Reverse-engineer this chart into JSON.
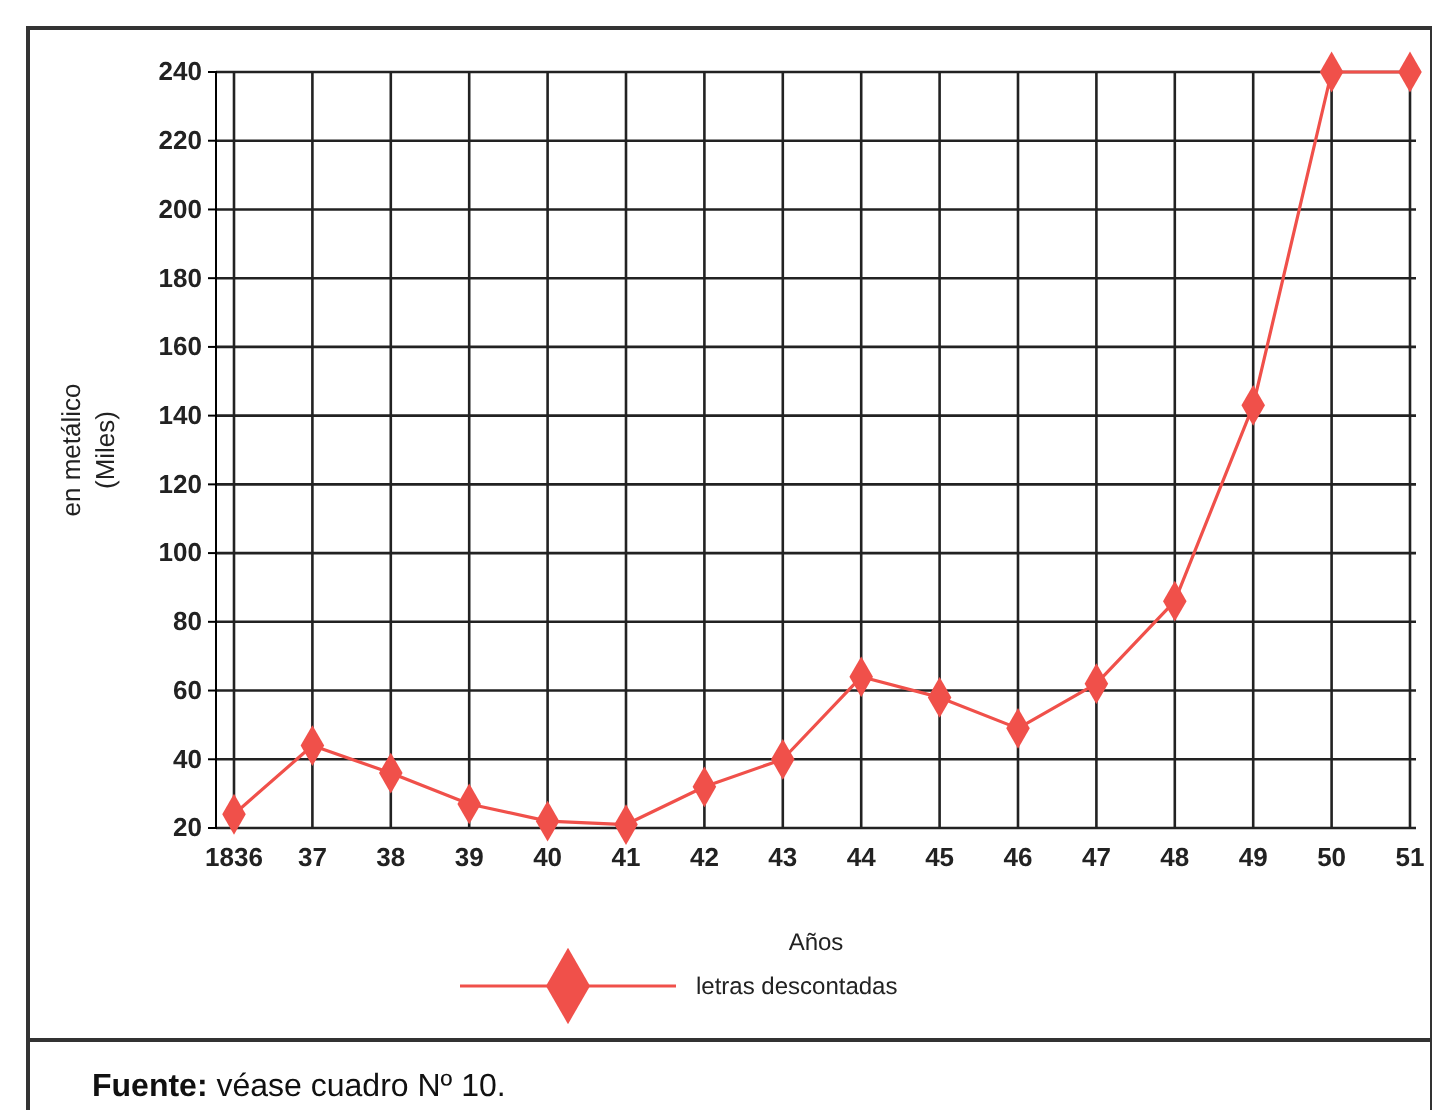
{
  "chart_data": {
    "type": "line",
    "xlabel": "Años",
    "ylabel": "en metálico (Miles)",
    "categories": [
      "1836",
      "37",
      "38",
      "39",
      "40",
      "41",
      "42",
      "43",
      "44",
      "45",
      "46",
      "47",
      "48",
      "49",
      "50",
      "51"
    ],
    "series": [
      {
        "name": "letras descontadas",
        "color": "#f0504a",
        "values": [
          24,
          44,
          36,
          27,
          22,
          21,
          32,
          40,
          64,
          58,
          49,
          62,
          86,
          143,
          240,
          240
        ]
      }
    ],
    "ylim": [
      20,
      240
    ],
    "yticks": [
      20,
      40,
      60,
      80,
      100,
      120,
      140,
      160,
      180,
      200,
      220,
      240
    ],
    "grid": true,
    "marker": "diamond",
    "line_style": "solid",
    "legend": "bottom",
    "annotations": [
      "Fuente: véase cuadro Nº 10."
    ]
  }
}
